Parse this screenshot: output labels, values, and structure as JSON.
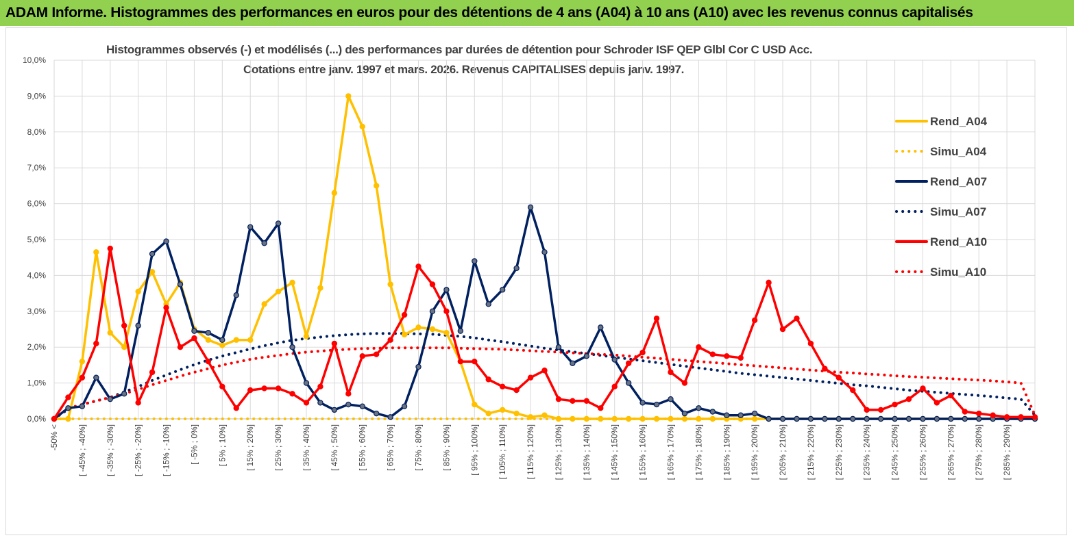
{
  "header": {
    "title": "ADAM Informe. Histogrammes des performances en euros pour des détentions de 4 ans (A04) à 10 ans (A10) avec les revenus connus capitalisés"
  },
  "colors": {
    "header_bg": "#92d050",
    "A04": "#ffc000",
    "A07": "#002060",
    "A10": "#ff0000",
    "grid": "#d9d9d9",
    "axis_text": "#404040"
  },
  "chart_data": {
    "type": "line",
    "title_line1": "Histogrammes observés (-) et modélisés (...) des performances par durées de détention pour Schroder ISF QEP Glbl Cor C USD Acc.",
    "title_line2": "Cotations entre janv. 1997 et mars. 2026.  Revenus CAPITALISES depuis janv. 1997.",
    "ylim": [
      0,
      10
    ],
    "yticks": [
      "0,0%",
      "1,0%",
      "2,0%",
      "3,0%",
      "4,0%",
      "5,0%",
      "6,0%",
      "7,0%",
      "8,0%",
      "9,0%",
      "10,0%"
    ],
    "xlabels": [
      "-50% <",
      "[ -45% ; -40%]",
      "[ -35% ; -30%]",
      "[ -25% ; -20%]",
      "[ -15% ; -10%]",
      "[ -5% ; 0%]",
      "[ 5% ; 10%]",
      "[ 15% ; 20%]",
      "[ 25% ; 30%]",
      "[ 35% ; 40%]",
      "[ 45% ; 50%]",
      "[ 55% ; 60%]",
      "[ 65% ; 70%]",
      "[ 75% ; 80%]",
      "[ 85% ; 90%]",
      "[ 95% ; 100%]",
      "[ 105% ; 110%]",
      "[ 115% ; 120%]",
      "[ 125% ; 130%]",
      "[ 135% ; 140%]",
      "[ 145% ; 150%]",
      "[ 155% ; 160%]",
      "[ 165% ; 170%]",
      "[ 175% ; 180%]",
      "[ 185% ; 190%]",
      "[ 195% ; 200%]",
      "[ 205% ; 210%]",
      "[ 215% ; 220%]",
      "[ 225% ; 230%]",
      "[ 235% ; 240%]",
      "[ 245% ; 250%]",
      "[ 255% ; 260%]",
      "[ 265% ; 270%]",
      "[ 275% ; 280%]",
      "[ 285% ; 290%]"
    ],
    "n_points": 71,
    "series": [
      {
        "name": "Rend_A04",
        "style": "solid",
        "color": "#ffc000",
        "markers": true,
        "values": [
          0,
          0,
          1.6,
          4.65,
          2.4,
          2.0,
          3.55,
          4.1,
          3.2,
          3.8,
          2.5,
          2.2,
          2.05,
          2.2,
          2.2,
          3.2,
          3.55,
          3.8,
          2.3,
          3.65,
          6.3,
          9.0,
          8.15,
          6.5,
          3.75,
          2.35,
          2.55,
          2.5,
          2.4,
          1.6,
          0.4,
          0.15,
          0.25,
          0.15,
          0.05,
          0.1,
          0,
          0,
          0,
          0,
          0,
          0,
          0,
          0,
          0,
          0,
          0,
          0,
          0,
          0,
          0,
          0,
          0,
          0,
          0,
          0,
          0,
          0,
          0,
          0,
          0,
          0,
          0,
          0,
          0,
          0,
          0,
          0,
          0,
          0,
          0
        ]
      },
      {
        "name": "Simu_A04",
        "style": "dotted",
        "color": "#ffc000",
        "markers": false,
        "values": [
          0,
          0,
          0,
          0,
          0,
          0,
          0,
          0,
          0,
          0,
          0,
          0,
          0,
          0,
          0,
          0,
          0,
          0,
          0,
          0,
          0,
          0,
          0,
          0,
          0,
          0,
          0,
          0,
          0,
          0,
          0,
          0,
          0,
          0,
          0,
          0,
          0,
          0,
          0,
          0,
          0,
          0,
          0,
          0,
          0,
          0,
          0,
          0,
          0,
          0,
          0,
          0,
          0,
          0,
          0,
          0,
          0,
          0,
          0,
          0,
          0,
          0,
          0,
          0,
          0,
          0,
          0,
          0,
          0,
          0,
          0
        ]
      },
      {
        "name": "Rend_A07",
        "style": "solid",
        "color": "#002060",
        "markers": true,
        "values": [
          0,
          0.3,
          0.35,
          1.15,
          0.55,
          0.7,
          2.6,
          4.6,
          4.95,
          3.75,
          2.45,
          2.4,
          2.2,
          3.45,
          5.35,
          4.9,
          5.45,
          2.0,
          1.0,
          0.45,
          0.25,
          0.4,
          0.35,
          0.15,
          0.05,
          0.35,
          1.45,
          3.0,
          3.6,
          2.45,
          4.4,
          3.2,
          3.6,
          4.2,
          5.9,
          4.65,
          2.0,
          1.55,
          1.75,
          2.55,
          1.65,
          1.0,
          0.45,
          0.4,
          0.55,
          0.15,
          0.3,
          0.2,
          0.1,
          0.1,
          0.15,
          0,
          0,
          0,
          0,
          0,
          0,
          0,
          0,
          0,
          0,
          0,
          0,
          0,
          0,
          0,
          0,
          0,
          0,
          0,
          0
        ]
      },
      {
        "name": "Simu_A07",
        "style": "dotted",
        "color": "#002060",
        "markers": false,
        "values": [
          0,
          0.27,
          0.4,
          0.5,
          0.6,
          0.75,
          0.9,
          1.07,
          1.22,
          1.37,
          1.51,
          1.64,
          1.75,
          1.85,
          1.95,
          2.04,
          2.12,
          2.19,
          2.24,
          2.28,
          2.32,
          2.35,
          2.37,
          2.38,
          2.38,
          2.38,
          2.37,
          2.36,
          2.33,
          2.3,
          2.26,
          2.2,
          2.15,
          2.09,
          2.03,
          1.97,
          1.92,
          1.87,
          1.82,
          1.77,
          1.72,
          1.67,
          1.62,
          1.57,
          1.52,
          1.47,
          1.42,
          1.37,
          1.32,
          1.27,
          1.23,
          1.19,
          1.15,
          1.11,
          1.07,
          1.03,
          0.99,
          0.95,
          0.92,
          0.88,
          0.84,
          0.8,
          0.77,
          0.74,
          0.71,
          0.68,
          0.65,
          0.62,
          0.58,
          0.55,
          0.1
        ]
      },
      {
        "name": "Rend_A10",
        "style": "solid",
        "color": "#ff0000",
        "markers": true,
        "values": [
          0,
          0.6,
          1.15,
          2.1,
          4.75,
          2.6,
          0.45,
          1.3,
          3.1,
          2.0,
          2.25,
          1.6,
          0.9,
          0.3,
          0.8,
          0.85,
          0.85,
          0.7,
          0.45,
          0.9,
          2.1,
          0.7,
          1.75,
          1.8,
          2.2,
          2.9,
          4.25,
          3.75,
          3.0,
          1.6,
          1.6,
          1.1,
          0.9,
          0.8,
          1.15,
          1.35,
          0.55,
          0.5,
          0.5,
          0.3,
          0.9,
          1.55,
          1.85,
          2.8,
          1.3,
          1.0,
          2.0,
          1.8,
          1.75,
          1.7,
          2.75,
          3.8,
          2.5,
          2.8,
          2.1,
          1.4,
          1.15,
          0.8,
          0.25,
          0.25,
          0.4,
          0.55,
          0.85,
          0.45,
          0.65,
          0.2,
          0.15,
          0.1,
          0.05,
          0.05,
          0.05
        ]
      },
      {
        "name": "Simu_A10",
        "style": "dotted",
        "color": "#ff0000",
        "markers": false,
        "values": [
          0,
          0.3,
          0.4,
          0.5,
          0.6,
          0.7,
          0.82,
          0.95,
          1.07,
          1.19,
          1.3,
          1.4,
          1.5,
          1.58,
          1.66,
          1.72,
          1.77,
          1.82,
          1.86,
          1.89,
          1.92,
          1.94,
          1.96,
          1.97,
          1.98,
          1.98,
          1.98,
          1.98,
          1.98,
          1.97,
          1.96,
          1.95,
          1.94,
          1.92,
          1.9,
          1.88,
          1.86,
          1.84,
          1.82,
          1.8,
          1.78,
          1.75,
          1.72,
          1.69,
          1.66,
          1.63,
          1.6,
          1.57,
          1.54,
          1.51,
          1.48,
          1.45,
          1.42,
          1.39,
          1.36,
          1.33,
          1.3,
          1.28,
          1.25,
          1.23,
          1.2,
          1.18,
          1.16,
          1.14,
          1.12,
          1.1,
          1.08,
          1.06,
          1.03,
          1.0,
          0.1
        ]
      }
    ]
  }
}
